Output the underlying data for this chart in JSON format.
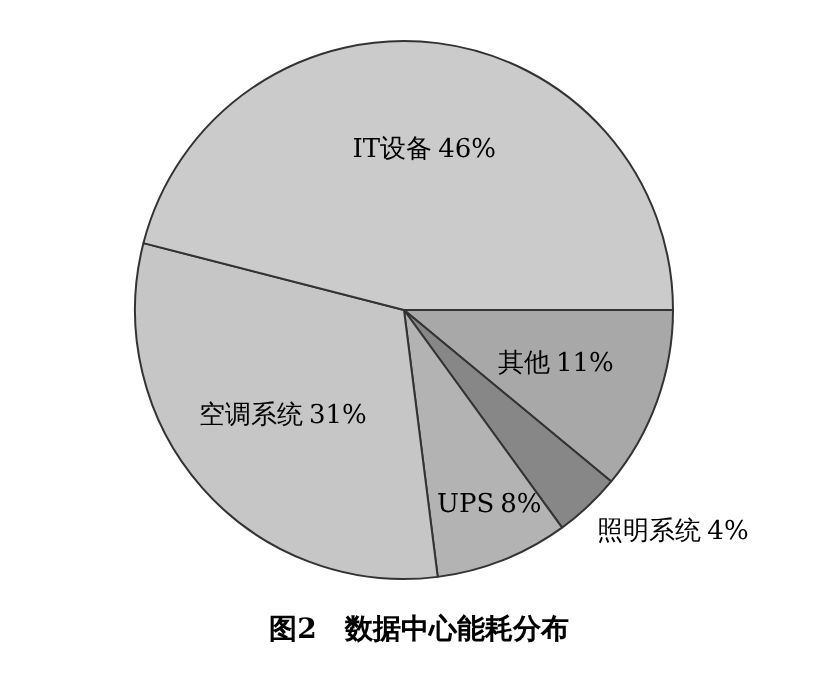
{
  "chart_data": {
    "type": "pie",
    "title": "图2　数据中心能耗分布",
    "categories": [
      "其他",
      "照明系统",
      "UPS",
      "空调系统",
      "IT设备"
    ],
    "values": [
      11,
      4,
      8,
      31,
      46
    ],
    "colors": [
      "#a8a8a8",
      "#878787",
      "#b3b3b3",
      "#c6c6c6",
      "#cbcbcb"
    ],
    "value_labels": [
      "11%",
      "4%",
      "8%",
      "31%",
      "46%"
    ],
    "legend": false
  }
}
